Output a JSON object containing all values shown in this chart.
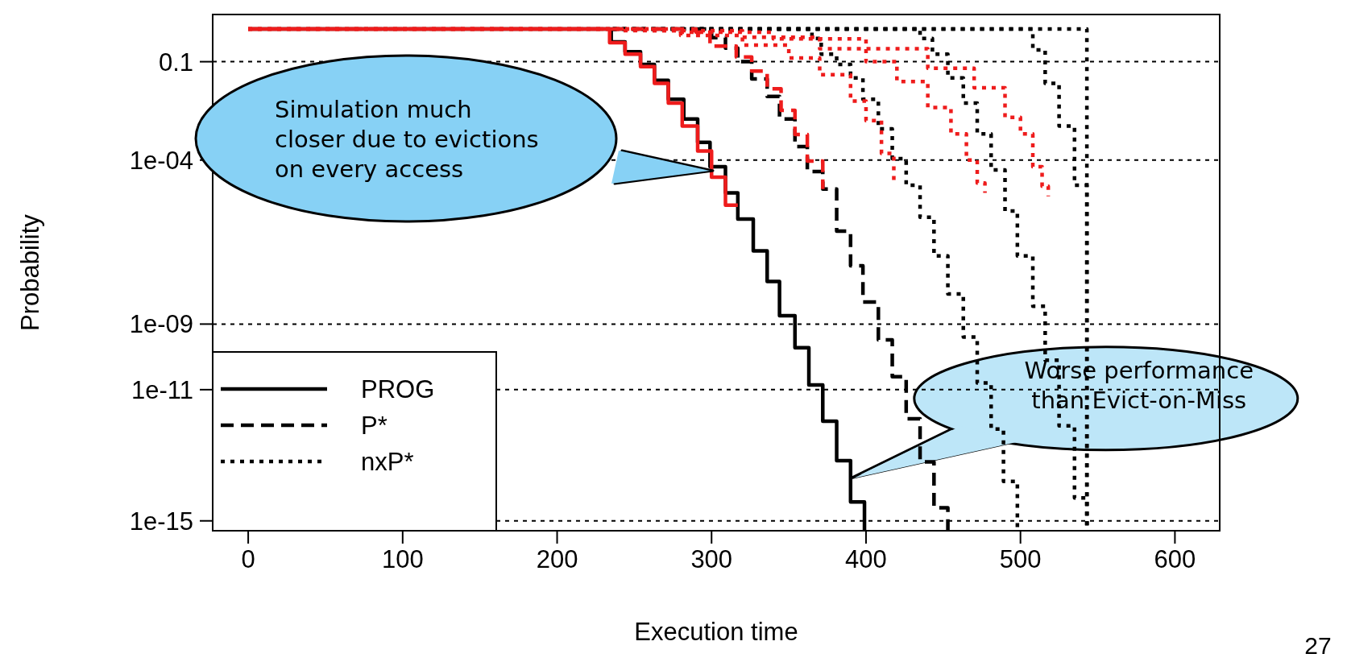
{
  "chart_data": {
    "type": "step",
    "xlabel": "Execution time",
    "ylabel": "Probability",
    "xlim": [
      -23,
      629
    ],
    "xticks": [
      0,
      100,
      200,
      300,
      400,
      500,
      600
    ],
    "ylim": [
      5e-16,
      2.75
    ],
    "log": "y",
    "yticks": [
      0.1,
      {
        "value": 0.0001,
        "label": "1e-04"
      },
      {
        "value": 1e-09,
        "label": "1e-09"
      },
      {
        "value": 1e-11,
        "label": "1e-11"
      },
      {
        "value": 1e-15,
        "label": "1e-15"
      }
    ],
    "grid": "y",
    "legend": "bottom left",
    "series": [
      {
        "name": "PROG",
        "color": "#000000",
        "line_style": "solid",
        "x": [
          0,
          235,
          244,
          254,
          263,
          272,
          282,
          291,
          299,
          309,
          317,
          327,
          336,
          344,
          354,
          363,
          372,
          381,
          390,
          399
        ],
        "values": [
          1,
          0.4,
          0.2,
          0.083,
          0.027,
          0.0072,
          0.0018,
          0.00035,
          6.3e-05,
          1e-05,
          1.6e-06,
          1.7e-07,
          2e-08,
          1.8e-09,
          1.9e-10,
          1.4e-11,
          1.1e-12,
          6.8e-14,
          3.8e-15,
          5e-16
        ]
      },
      {
        "name": "P*",
        "color": "#000000",
        "line_style": "dashed",
        "x": [
          236,
          300,
          309,
          317,
          326,
          336,
          344,
          354,
          362,
          372,
          381,
          390,
          398,
          408,
          417,
          426,
          435,
          444,
          453
        ],
        "values": [
          1,
          0.54,
          0.26,
          0.1,
          0.03,
          0.0087,
          0.0018,
          0.00026,
          4.5e-05,
          1.3e-05,
          6.8e-07,
          6e-08,
          4.7e-09,
          3.3e-10,
          2.5e-11,
          1.3e-12,
          6.3e-14,
          2.5e-15,
          5e-16
        ]
      },
      {
        "name": "nxP*",
        "color": "#000000",
        "line_style": "dotted",
        "x": [
          236,
          365,
          371,
          381,
          390,
          398,
          408,
          417,
          426,
          435,
          444,
          453,
          463,
          472,
          481,
          489,
          498
        ],
        "values": [
          1,
          0.51,
          0.17,
          0.083,
          0.032,
          0.0072,
          0.00089,
          0.00011,
          1.7e-05,
          1.8e-06,
          1.2e-07,
          8.3e-09,
          4e-10,
          1.6e-11,
          6.3e-13,
          1.6e-14,
          5e-16
        ]
      },
      {
        "color": "#000000",
        "line_style": "dotted",
        "x": [
          236,
          435,
          443,
          453,
          463,
          472,
          481,
          490,
          498,
          508,
          516,
          525,
          535,
          543
        ],
        "values": [
          1,
          0.51,
          0.17,
          0.032,
          0.0055,
          0.00063,
          5e-05,
          2.8e-06,
          1.2e-07,
          3.5e-09,
          7.9e-11,
          7.9e-13,
          5e-15,
          5e-16
        ]
      },
      {
        "color": "#000000",
        "line_style": "dotted",
        "x": [
          236,
          508,
          516,
          525,
          535,
          543
        ],
        "values": [
          1,
          0.23,
          0.022,
          0.0011,
          1.7e-05,
          5e-16
        ]
      },
      {
        "color": "#000000",
        "line_style": "dotted",
        "x": [
          236,
          543
        ],
        "values": [
          1,
          5e-16
        ]
      },
      {
        "color": "#ee1c1c",
        "line_style": "solid",
        "x": [
          0,
          234,
          244,
          254,
          263,
          272,
          281,
          291,
          300,
          309,
          317
        ],
        "values": [
          1,
          0.38,
          0.17,
          0.071,
          0.022,
          0.0055,
          0.0011,
          0.00019,
          3e-05,
          4.2e-06,
          4.2e-06
        ]
      },
      {
        "color": "#ee1c1c",
        "line_style": "dashed",
        "x": [
          0,
          290,
          299,
          316,
          326,
          336,
          345,
          354,
          362,
          372
        ],
        "values": [
          1,
          0.79,
          0.3,
          0.14,
          0.052,
          0.015,
          0.0033,
          0.0006,
          9.3e-05,
          1.3e-05
        ]
      },
      {
        "color": "#ee1c1c",
        "line_style": "dotted",
        "x": [
          0,
          240,
          280,
          320,
          350,
          370,
          390,
          400,
          410,
          418
        ],
        "values": [
          1,
          0.89,
          0.63,
          0.32,
          0.13,
          0.04,
          0.0063,
          0.0016,
          0.00016,
          2e-05
        ]
      },
      {
        "color": "#ee1c1c",
        "line_style": "dotted",
        "x": [
          0,
          260,
          320,
          370,
          400,
          420,
          440,
          455,
          465,
          472,
          477
        ],
        "values": [
          1,
          0.89,
          0.56,
          0.25,
          0.1,
          0.025,
          0.004,
          0.00063,
          0.0001,
          2e-05,
          1e-05
        ]
      },
      {
        "color": "#ee1c1c",
        "line_style": "dotted",
        "x": [
          0,
          280,
          340,
          400,
          440,
          470,
          490,
          500,
          508,
          514,
          518
        ],
        "values": [
          1,
          0.79,
          0.5,
          0.25,
          0.063,
          0.016,
          0.002,
          0.00063,
          6.3e-05,
          1.6e-05,
          7.9e-06
        ]
      }
    ],
    "annotations": [
      "Simulation much\ncloser due to evictions\non every access",
      {
        "text": "Worse performance\nthan Evict-on-Miss",
        "x": 390,
        "y": 2e-14
      },
      "27"
    ]
  }
}
